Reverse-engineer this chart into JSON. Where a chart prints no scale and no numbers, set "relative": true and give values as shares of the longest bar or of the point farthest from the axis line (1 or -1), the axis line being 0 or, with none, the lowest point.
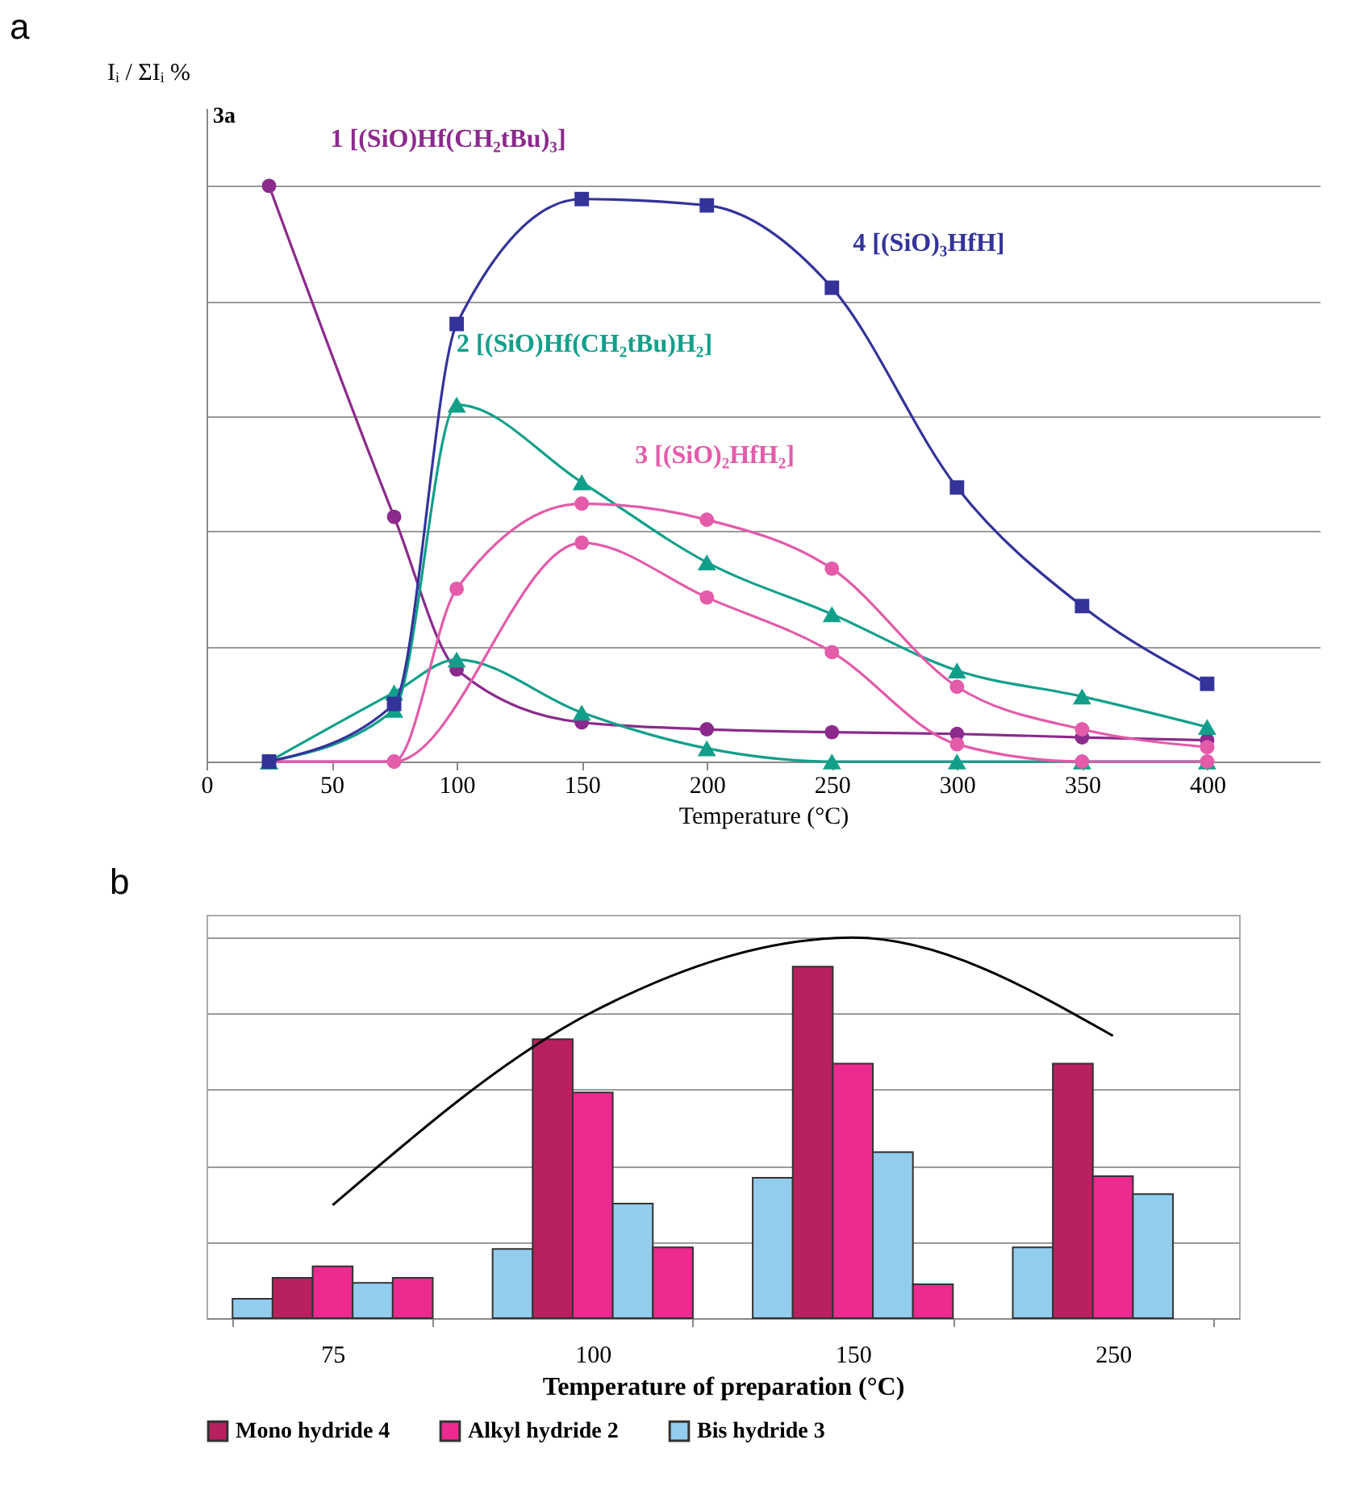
{
  "chart_data": [
    {
      "type": "line",
      "title": "a",
      "xlabel": "Temperature (°C)",
      "ylabel": "Iᵢ / ΣIᵢ %",
      "annotations": [
        "3a"
      ],
      "x": [
        25,
        75,
        100,
        150,
        200,
        250,
        300,
        350,
        400
      ],
      "xlim": [
        0,
        445
      ],
      "xticks": [
        0,
        50,
        100,
        150,
        200,
        250,
        300,
        350,
        400
      ],
      "relative": true,
      "grid": "y",
      "series": [
        {
          "name": "1 [(SiO)Hf(CH₂tBu)₃]",
          "color": "#8b2a8c",
          "marker": "circle",
          "values": [
            1.0,
            0.425,
            0.16,
            0.068,
            0.056,
            0.051,
            0.048,
            0.042,
            0.037
          ]
        },
        {
          "name": "2 [(SiO)Hf(CH₂tBu)H₂]",
          "color": "#129f8a",
          "marker": "triangle",
          "values": [
            0,
            0.09,
            0.62,
            0.485,
            0.346,
            0.256,
            0.158,
            0.113,
            0.06
          ]
        },
        {
          "color": "#129f8a",
          "marker": "triangle",
          "values": [
            0,
            0.12,
            0.177,
            0.085,
            0.023,
            0,
            0,
            0,
            0
          ]
        },
        {
          "name": "3 [(SiO)₂HfH₂]",
          "color": "#e35ba9",
          "marker": "circle",
          "values": [
            0,
            0,
            0.3,
            0.448,
            0.42,
            0.335,
            0.13,
            0.056,
            0.025
          ]
        },
        {
          "color": "#e35ba9",
          "marker": "circle",
          "values": [
            0,
            0,
            null,
            0.38,
            0.285,
            0.19,
            0.03,
            0,
            0
          ]
        },
        {
          "name": "4 [(SiO)₃HfH]",
          "color": "#33339a",
          "marker": "square",
          "values": [
            0,
            0.1,
            0.76,
            0.977,
            0.966,
            0.823,
            0.476,
            0.27,
            0.135
          ]
        }
      ]
    },
    {
      "type": "bar",
      "title": "b",
      "xlabel": "Temperature of preparation (°C)",
      "categories": [
        "75",
        "100",
        "150",
        "250"
      ],
      "relative": true,
      "grid": "y",
      "legend": "bottom",
      "series": [
        {
          "color": "#93cdee",
          "values": [
            0.051,
            0.182,
            0.369,
            0.186
          ]
        },
        {
          "name": "Mono hydride 4",
          "color": "#b9205f",
          "values": [
            0.106,
            0.733,
            0.924,
            0.669
          ]
        },
        {
          "name": "Alkyl hydride 2",
          "color": "#ec2a8f",
          "values": [
            0.136,
            0.593,
            0.669,
            0.373
          ]
        },
        {
          "name": "Bis hydride 3",
          "color": "#93cdee",
          "values": [
            0.093,
            0.301,
            0.436,
            0.326
          ]
        },
        {
          "color": "#ec2a8f",
          "values": [
            0.106,
            0.186,
            0.089,
            null
          ]
        },
        {
          "type": "line",
          "color": "#000000",
          "values": [
            0.297,
            0.805,
            1.0,
            0.742
          ]
        }
      ]
    }
  ]
}
